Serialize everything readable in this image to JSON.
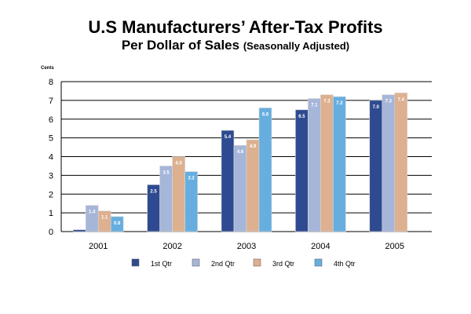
{
  "title_line1": "U.S Manufacturers’ After-Tax Profits",
  "title_line2": "Per Dollar of Sales",
  "title_paren": "(Seasonally Adjusted)",
  "y_unit": "Cents",
  "chart_data": {
    "type": "bar",
    "title": "U.S Manufacturers’ After-Tax Profits Per Dollar of Sales (Seasonally Adjusted)",
    "ylabel": "Cents",
    "ylim": [
      0,
      8
    ],
    "yticks": [
      0,
      1,
      2,
      3,
      4,
      5,
      6,
      7,
      8
    ],
    "grid": true,
    "legend": "bottom",
    "categories": [
      "2001",
      "2002",
      "2003",
      "2004",
      "2005"
    ],
    "series": [
      {
        "name": "1st Qtr",
        "color": "#2e4a90",
        "values": [
          0.1,
          2.5,
          5.4,
          6.5,
          7.0
        ],
        "labels": [
          "",
          "2.5",
          "5.4",
          "6.5",
          "7.0"
        ]
      },
      {
        "name": "2nd Qtr",
        "color": "#a6b6d9",
        "values": [
          1.4,
          3.5,
          4.6,
          7.1,
          7.3
        ],
        "labels": [
          "1.4",
          "3.5",
          "4.6",
          "7.1",
          "7.3"
        ]
      },
      {
        "name": "3rd Qtr",
        "color": "#ddb090",
        "values": [
          1.1,
          4.0,
          4.9,
          7.3,
          7.4
        ],
        "labels": [
          "1.1",
          "4.0",
          "4.9",
          "7.3",
          "7.4"
        ]
      },
      {
        "name": "4th Qtr",
        "color": "#66aee0",
        "values": [
          0.8,
          3.2,
          6.6,
          7.2,
          null
        ],
        "labels": [
          "0.8",
          "3.2",
          "6.6",
          "7.2",
          ""
        ]
      }
    ]
  }
}
